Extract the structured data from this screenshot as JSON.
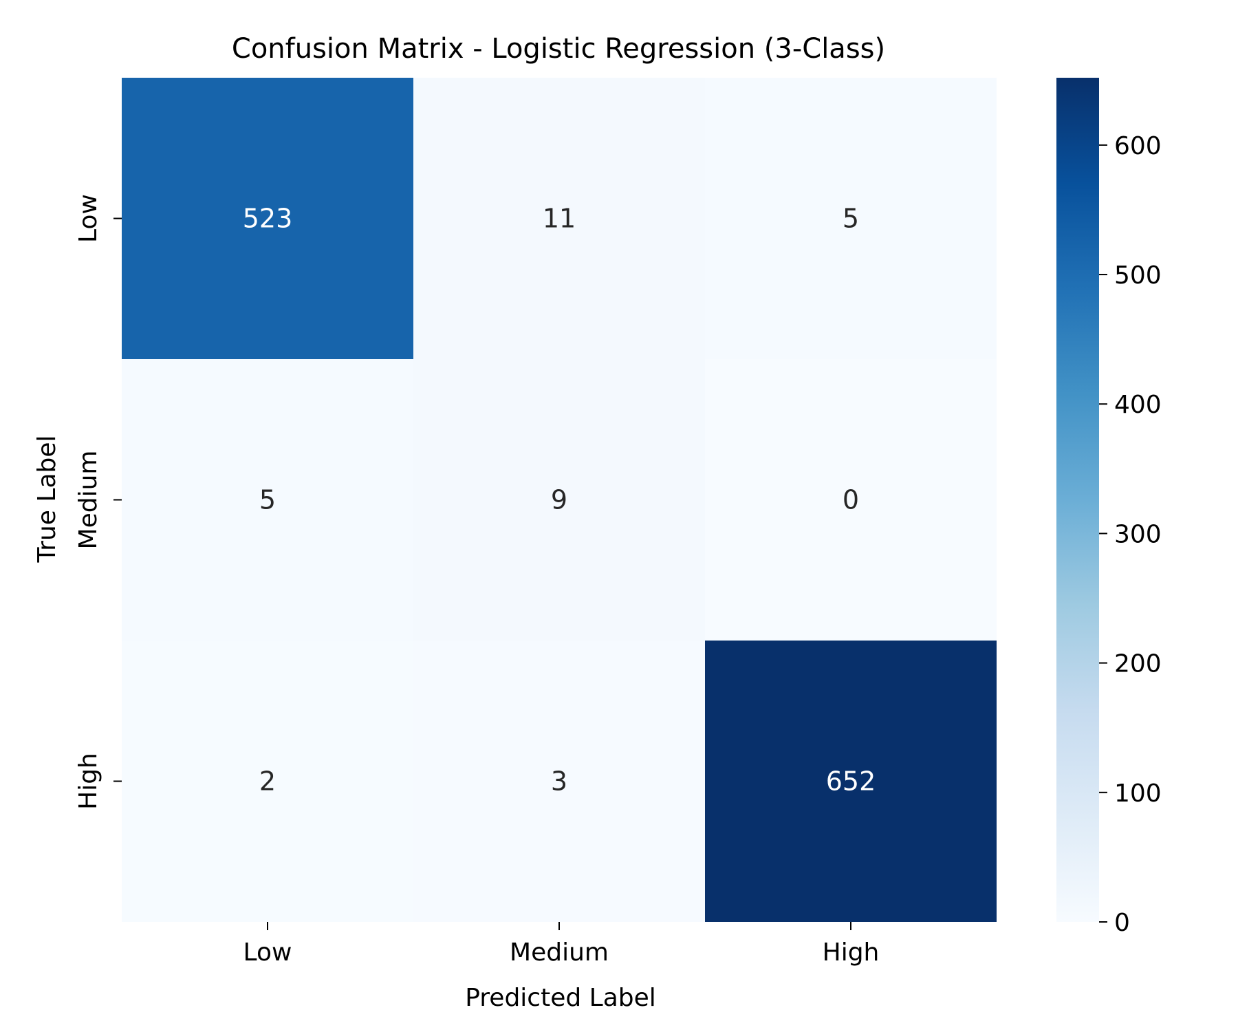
{
  "chart_data": {
    "type": "heatmap",
    "title": "Confusion Matrix - Logistic Regression (3-Class)",
    "xlabel": "Predicted Label",
    "ylabel": "True Label",
    "x_categories": [
      "Low",
      "Medium",
      "High"
    ],
    "y_categories": [
      "Low",
      "Medium",
      "High"
    ],
    "matrix": [
      [
        523,
        11,
        5
      ],
      [
        5,
        9,
        0
      ],
      [
        2,
        3,
        652
      ]
    ],
    "colormap": "Blues",
    "colormap_stops": [
      "#f7fbff",
      "#deebf7",
      "#c6dbef",
      "#9ecae1",
      "#6baed6",
      "#4292c6",
      "#2171b5",
      "#08519c",
      "#08306b"
    ],
    "colorbar": {
      "range": [
        0,
        652
      ],
      "ticks": [
        0,
        100,
        200,
        300,
        400,
        500,
        600
      ]
    },
    "annotation_colors": {
      "dark": "#262626",
      "light": "#ffffff"
    }
  }
}
